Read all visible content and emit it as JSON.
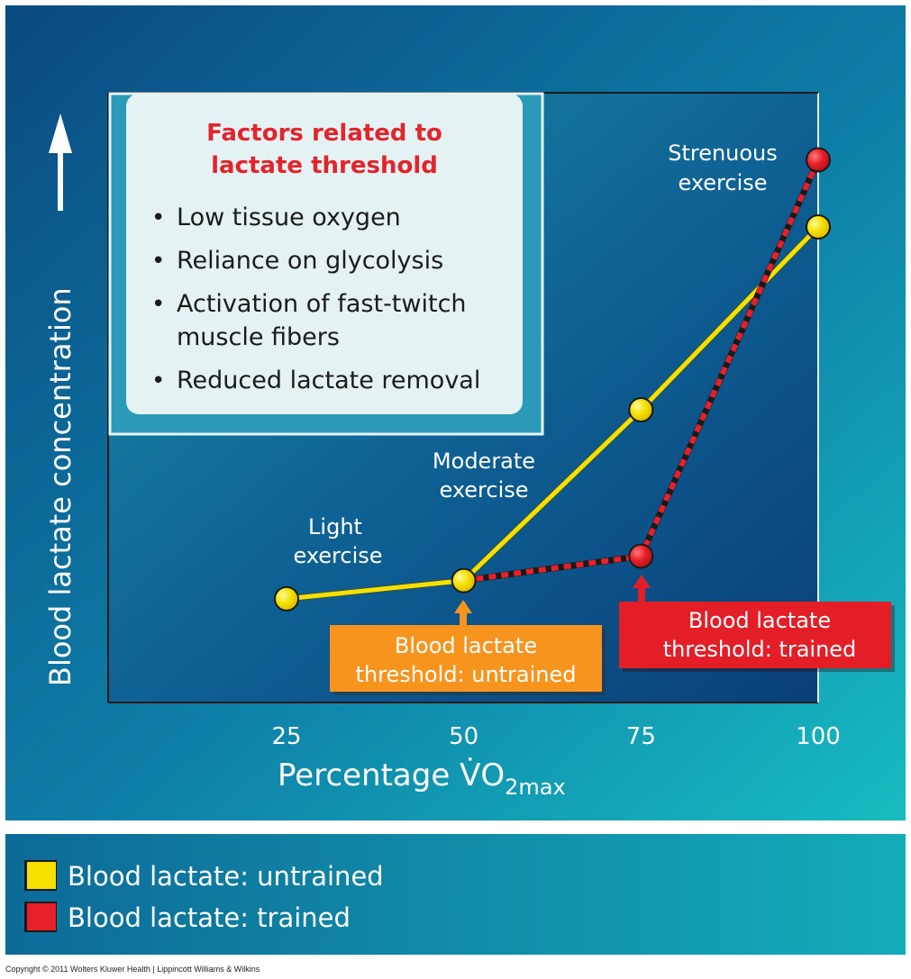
{
  "colors": {
    "untrained": "#f6e000",
    "trained": "#e8202a",
    "untrained_callout": "#f6941e",
    "trained_callout": "#e41e26",
    "factors_title": "#e3242b",
    "background_dark": "#0b4f87",
    "background_light": "#18b9bf"
  },
  "factors_box": {
    "title_line1": "Factors related to",
    "title_line2": "lactate threshold",
    "items": [
      "Low tissue oxygen",
      "Reliance on glycolysis",
      "Activation of fast-twitch",
      "muscle fibers",
      "Reduced lactate removal"
    ]
  },
  "annotations": {
    "light": [
      "Light",
      "exercise"
    ],
    "moderate": [
      "Moderate",
      "exercise"
    ],
    "strenuous": [
      "Strenuous",
      "exercise"
    ]
  },
  "callouts": {
    "untrained": [
      "Blood lactate",
      "threshold: untrained"
    ],
    "trained": [
      "Blood lactate",
      "threshold: trained"
    ]
  },
  "copyright": "Copyright © 2011 Wolters Kluwer Health | Lippincott Williams & Wilkins",
  "chart_data": {
    "type": "line",
    "xlabel_main": "Percentage V̇O",
    "xlabel_sub": "2max",
    "ylabel": "Blood lactate concentration",
    "x_ticks": [
      "25",
      "50",
      "75",
      "100"
    ],
    "xlim": [
      0,
      100
    ],
    "ylim": [
      0,
      10
    ],
    "grid": false,
    "legend_position": "bottom",
    "series": [
      {
        "name": "Blood lactate: untrained",
        "x": [
          25,
          50,
          75,
          100
        ],
        "y": [
          1.7,
          2.0,
          4.8,
          7.8
        ]
      },
      {
        "name": "Blood lactate: trained",
        "x": [
          50,
          75,
          100
        ],
        "y": [
          2.0,
          2.4,
          8.9
        ]
      }
    ]
  }
}
